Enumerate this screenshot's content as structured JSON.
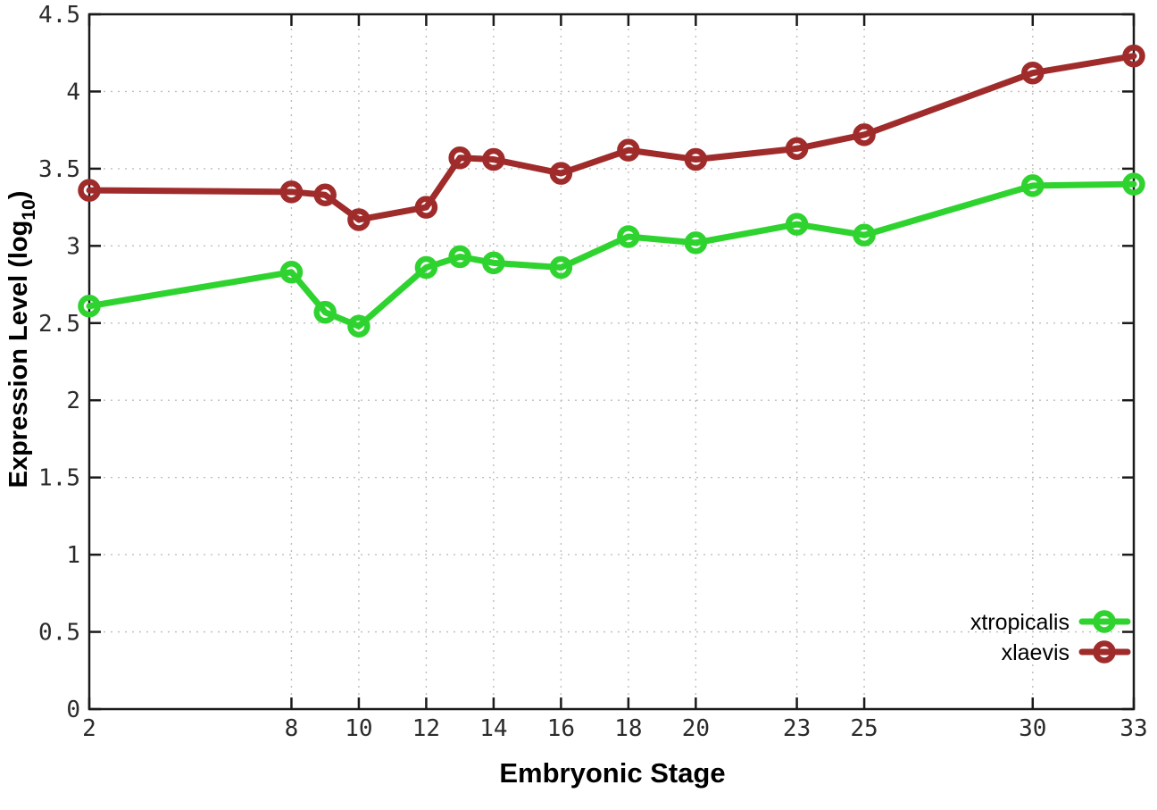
{
  "figure": {
    "background": "#ffffff",
    "grid_color": "#bdbdbd",
    "axis_color": "#1a1a1a",
    "tick_label_color": "#2b2b2b"
  },
  "labels": {
    "y_title_main": "Expression Level (log",
    "y_title_sub": "10",
    "y_title_close": ")"
  },
  "chart_data": {
    "type": "line",
    "title": "",
    "xlabel": "Embryonic Stage",
    "ylabel": "Expression Level (log10)",
    "xlim": [
      2,
      33
    ],
    "ylim": [
      0,
      4.5
    ],
    "grid": true,
    "legend_position": "bottom-right-inside",
    "x": [
      2,
      8,
      9,
      10,
      12,
      13,
      14,
      16,
      18,
      20,
      23,
      25,
      30,
      33
    ],
    "series": [
      {
        "name": "xtropicalis",
        "color": "#2fd32f",
        "marker": "open-circle",
        "values": [
          2.61,
          2.83,
          2.57,
          2.48,
          2.86,
          2.93,
          2.89,
          2.86,
          3.06,
          3.02,
          3.14,
          3.07,
          3.39,
          3.4
        ]
      },
      {
        "name": "xlaevis",
        "color": "#a02b2b",
        "marker": "open-circle",
        "values": [
          3.36,
          3.35,
          3.33,
          3.17,
          3.25,
          3.57,
          3.56,
          3.47,
          3.62,
          3.56,
          3.63,
          3.72,
          4.12,
          4.23
        ]
      }
    ],
    "x_ticks": [
      2,
      8,
      10,
      12,
      14,
      16,
      18,
      20,
      23,
      25,
      30,
      33
    ],
    "x_tick_labels": [
      "2",
      "8",
      "10",
      "12",
      "14",
      "16",
      "18",
      "20",
      "23",
      "25",
      "30",
      "33"
    ],
    "y_ticks": [
      0,
      0.5,
      1,
      1.5,
      2,
      2.5,
      3,
      3.5,
      4,
      4.5
    ],
    "y_tick_labels": [
      "0",
      "0.5",
      "1",
      "1.5",
      "2",
      "2.5",
      "3",
      "3.5",
      "4",
      "4.5"
    ]
  }
}
